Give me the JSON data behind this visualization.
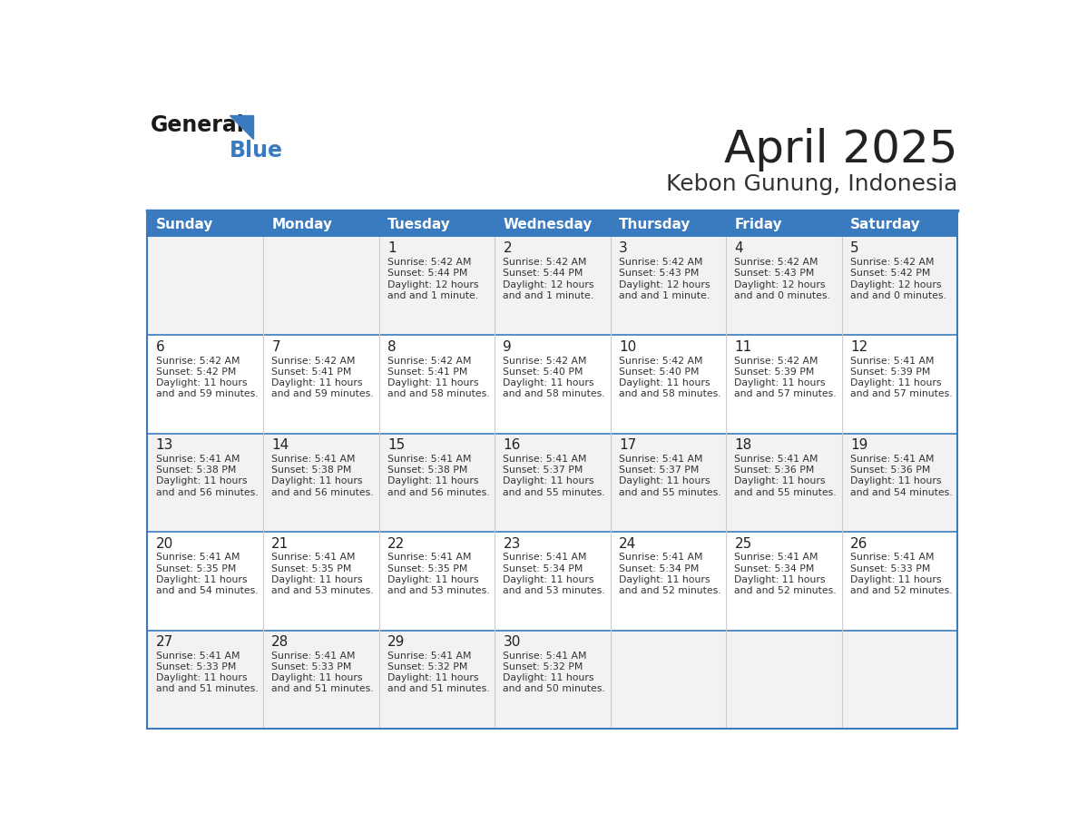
{
  "title": "April 2025",
  "subtitle": "Kebon Gunung, Indonesia",
  "header_bg": "#3a7bbf",
  "header_text": "#ffffff",
  "row_bg_odd": "#f2f2f2",
  "row_bg_even": "#ffffff",
  "border_color": "#3a7bbf",
  "day_names": [
    "Sunday",
    "Monday",
    "Tuesday",
    "Wednesday",
    "Thursday",
    "Friday",
    "Saturday"
  ],
  "days": [
    {
      "day": 1,
      "col": 2,
      "row": 0,
      "sunrise": "5:42 AM",
      "sunset": "5:44 PM",
      "daylight": "12 hours and 1 minute."
    },
    {
      "day": 2,
      "col": 3,
      "row": 0,
      "sunrise": "5:42 AM",
      "sunset": "5:44 PM",
      "daylight": "12 hours and 1 minute."
    },
    {
      "day": 3,
      "col": 4,
      "row": 0,
      "sunrise": "5:42 AM",
      "sunset": "5:43 PM",
      "daylight": "12 hours and 1 minute."
    },
    {
      "day": 4,
      "col": 5,
      "row": 0,
      "sunrise": "5:42 AM",
      "sunset": "5:43 PM",
      "daylight": "12 hours and 0 minutes."
    },
    {
      "day": 5,
      "col": 6,
      "row": 0,
      "sunrise": "5:42 AM",
      "sunset": "5:42 PM",
      "daylight": "12 hours and 0 minutes."
    },
    {
      "day": 6,
      "col": 0,
      "row": 1,
      "sunrise": "5:42 AM",
      "sunset": "5:42 PM",
      "daylight": "11 hours and 59 minutes."
    },
    {
      "day": 7,
      "col": 1,
      "row": 1,
      "sunrise": "5:42 AM",
      "sunset": "5:41 PM",
      "daylight": "11 hours and 59 minutes."
    },
    {
      "day": 8,
      "col": 2,
      "row": 1,
      "sunrise": "5:42 AM",
      "sunset": "5:41 PM",
      "daylight": "11 hours and 58 minutes."
    },
    {
      "day": 9,
      "col": 3,
      "row": 1,
      "sunrise": "5:42 AM",
      "sunset": "5:40 PM",
      "daylight": "11 hours and 58 minutes."
    },
    {
      "day": 10,
      "col": 4,
      "row": 1,
      "sunrise": "5:42 AM",
      "sunset": "5:40 PM",
      "daylight": "11 hours and 58 minutes."
    },
    {
      "day": 11,
      "col": 5,
      "row": 1,
      "sunrise": "5:42 AM",
      "sunset": "5:39 PM",
      "daylight": "11 hours and 57 minutes."
    },
    {
      "day": 12,
      "col": 6,
      "row": 1,
      "sunrise": "5:41 AM",
      "sunset": "5:39 PM",
      "daylight": "11 hours and 57 minutes."
    },
    {
      "day": 13,
      "col": 0,
      "row": 2,
      "sunrise": "5:41 AM",
      "sunset": "5:38 PM",
      "daylight": "11 hours and 56 minutes."
    },
    {
      "day": 14,
      "col": 1,
      "row": 2,
      "sunrise": "5:41 AM",
      "sunset": "5:38 PM",
      "daylight": "11 hours and 56 minutes."
    },
    {
      "day": 15,
      "col": 2,
      "row": 2,
      "sunrise": "5:41 AM",
      "sunset": "5:38 PM",
      "daylight": "11 hours and 56 minutes."
    },
    {
      "day": 16,
      "col": 3,
      "row": 2,
      "sunrise": "5:41 AM",
      "sunset": "5:37 PM",
      "daylight": "11 hours and 55 minutes."
    },
    {
      "day": 17,
      "col": 4,
      "row": 2,
      "sunrise": "5:41 AM",
      "sunset": "5:37 PM",
      "daylight": "11 hours and 55 minutes."
    },
    {
      "day": 18,
      "col": 5,
      "row": 2,
      "sunrise": "5:41 AM",
      "sunset": "5:36 PM",
      "daylight": "11 hours and 55 minutes."
    },
    {
      "day": 19,
      "col": 6,
      "row": 2,
      "sunrise": "5:41 AM",
      "sunset": "5:36 PM",
      "daylight": "11 hours and 54 minutes."
    },
    {
      "day": 20,
      "col": 0,
      "row": 3,
      "sunrise": "5:41 AM",
      "sunset": "5:35 PM",
      "daylight": "11 hours and 54 minutes."
    },
    {
      "day": 21,
      "col": 1,
      "row": 3,
      "sunrise": "5:41 AM",
      "sunset": "5:35 PM",
      "daylight": "11 hours and 53 minutes."
    },
    {
      "day": 22,
      "col": 2,
      "row": 3,
      "sunrise": "5:41 AM",
      "sunset": "5:35 PM",
      "daylight": "11 hours and 53 minutes."
    },
    {
      "day": 23,
      "col": 3,
      "row": 3,
      "sunrise": "5:41 AM",
      "sunset": "5:34 PM",
      "daylight": "11 hours and 53 minutes."
    },
    {
      "day": 24,
      "col": 4,
      "row": 3,
      "sunrise": "5:41 AM",
      "sunset": "5:34 PM",
      "daylight": "11 hours and 52 minutes."
    },
    {
      "day": 25,
      "col": 5,
      "row": 3,
      "sunrise": "5:41 AM",
      "sunset": "5:34 PM",
      "daylight": "11 hours and 52 minutes."
    },
    {
      "day": 26,
      "col": 6,
      "row": 3,
      "sunrise": "5:41 AM",
      "sunset": "5:33 PM",
      "daylight": "11 hours and 52 minutes."
    },
    {
      "day": 27,
      "col": 0,
      "row": 4,
      "sunrise": "5:41 AM",
      "sunset": "5:33 PM",
      "daylight": "11 hours and 51 minutes."
    },
    {
      "day": 28,
      "col": 1,
      "row": 4,
      "sunrise": "5:41 AM",
      "sunset": "5:33 PM",
      "daylight": "11 hours and 51 minutes."
    },
    {
      "day": 29,
      "col": 2,
      "row": 4,
      "sunrise": "5:41 AM",
      "sunset": "5:32 PM",
      "daylight": "11 hours and 51 minutes."
    },
    {
      "day": 30,
      "col": 3,
      "row": 4,
      "sunrise": "5:41 AM",
      "sunset": "5:32 PM",
      "daylight": "11 hours and 50 minutes."
    }
  ],
  "num_rows": 5,
  "num_cols": 7
}
